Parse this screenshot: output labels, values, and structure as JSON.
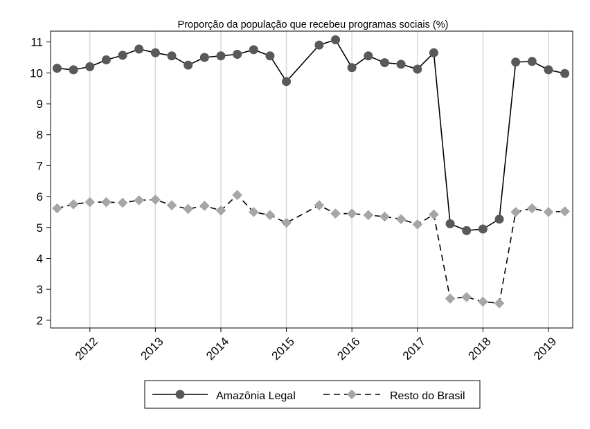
{
  "chart_data": {
    "type": "line",
    "title": "Proporção da população que recebeu programas sociais (%)",
    "xlabel": "",
    "ylabel": "",
    "ylim": [
      1.75,
      11.35
    ],
    "xlim": [
      2011.4,
      2019.37
    ],
    "yticks": [
      2,
      3,
      4,
      5,
      6,
      7,
      8,
      9,
      10,
      11
    ],
    "xticks": [
      2012,
      2013,
      2014,
      2015,
      2016,
      2017,
      2018,
      2019
    ],
    "xtick_labels": [
      "2012",
      "2013",
      "2014",
      "2015",
      "2016",
      "2017",
      "2018",
      "2019"
    ],
    "ytick_labels": [
      "2",
      "3",
      "4",
      "5",
      "6",
      "7",
      "8",
      "9",
      "10",
      "11"
    ],
    "grid": "vertical",
    "legend_position": "bottom",
    "x": [
      2011.5,
      2011.75,
      2012.0,
      2012.25,
      2012.5,
      2012.75,
      2013.0,
      2013.25,
      2013.5,
      2013.75,
      2014.0,
      2014.25,
      2014.5,
      2014.75,
      2015.0,
      2015.5,
      2015.75,
      2016.0,
      2016.25,
      2016.5,
      2016.75,
      2017.0,
      2017.25,
      2017.5,
      2017.75,
      2018.0,
      2018.25,
      2018.5,
      2018.75,
      2019.0,
      2019.25
    ],
    "series": [
      {
        "name": "Amazônia Legal",
        "style": "solid",
        "marker": "circle",
        "color": "#595959",
        "values": [
          10.15,
          10.1,
          10.2,
          10.42,
          10.57,
          10.77,
          10.65,
          10.55,
          10.25,
          10.5,
          10.55,
          10.6,
          10.75,
          10.55,
          9.72,
          10.9,
          11.07,
          10.17,
          10.55,
          10.33,
          10.28,
          10.12,
          10.65,
          5.12,
          4.9,
          4.95,
          5.27,
          10.35,
          10.37,
          10.1,
          9.98
        ]
      },
      {
        "name": "Resto do Brasil",
        "style": "dashed",
        "marker": "diamond",
        "color": "#a6a6a6",
        "values": [
          5.62,
          5.75,
          5.82,
          5.82,
          5.8,
          5.88,
          5.9,
          5.72,
          5.6,
          5.7,
          5.55,
          6.05,
          5.5,
          5.4,
          5.15,
          5.72,
          5.45,
          5.45,
          5.4,
          5.35,
          5.27,
          5.1,
          5.42,
          2.7,
          2.75,
          2.6,
          2.55,
          5.5,
          5.62,
          5.5,
          5.52
        ]
      }
    ]
  }
}
